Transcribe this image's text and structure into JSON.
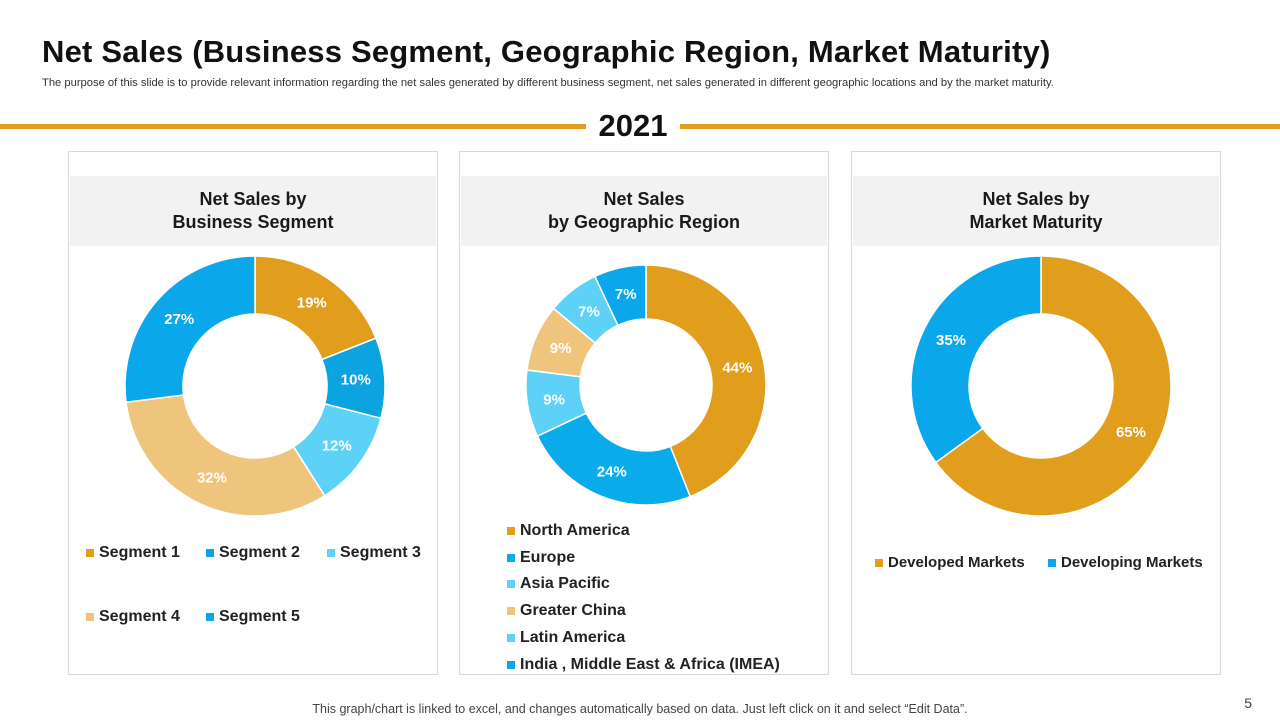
{
  "slide": {
    "title": "Net Sales (Business Segment, Geographic Region, Market Maturity)",
    "subtitle": "The purpose of this slide is to provide relevant information regarding the net sales generated by different business segment, net sales generated in different geographic locations and by the market maturity.",
    "year": "2021",
    "footer": "This graph/chart is linked to excel,  and changes automatically based on data. Just left click on it and select “Edit Data”.",
    "page_number": "5"
  },
  "chart_data": [
    {
      "type": "pie",
      "variant": "donut",
      "title": "Net Sales by\nBusiness Segment",
      "categories": [
        "Segment 1",
        "Segment 2",
        "Segment 3",
        "Segment 4",
        "Segment 5"
      ],
      "values": [
        19,
        10,
        12,
        32,
        27
      ],
      "labels": [
        "19%",
        "10%",
        "12%",
        "32%",
        "27%"
      ],
      "colors": [
        "#E19E1D",
        "#0BA3E0",
        "#5ED1F6",
        "#EFC47C",
        "#0AA7EB"
      ],
      "legend_position": "bottom"
    },
    {
      "type": "pie",
      "variant": "donut",
      "title": "Net Sales\nby Geographic Region",
      "categories": [
        "North America",
        "Europe",
        "Asia Pacific",
        "Greater China",
        "Latin America",
        "India , Middle East & Africa (IMEA)"
      ],
      "values": [
        44,
        24,
        9,
        9,
        7,
        7
      ],
      "labels": [
        "44%",
        "24%",
        "9%",
        "9%",
        "7%",
        "7%"
      ],
      "colors": [
        "#E19E1D",
        "#0AABEB",
        "#5ED1F6",
        "#EFC47C",
        "#5ED1F6",
        "#0AA7EB"
      ],
      "legend_position": "bottom"
    },
    {
      "type": "pie",
      "variant": "donut",
      "title": "Net Sales by\nMarket Maturity",
      "categories": [
        "Developed Markets",
        "Developing Markets"
      ],
      "values": [
        65,
        35
      ],
      "labels": [
        "65%",
        "35%"
      ],
      "colors": [
        "#E19E1D",
        "#0AA7EB"
      ],
      "legend_position": "bottom"
    }
  ]
}
